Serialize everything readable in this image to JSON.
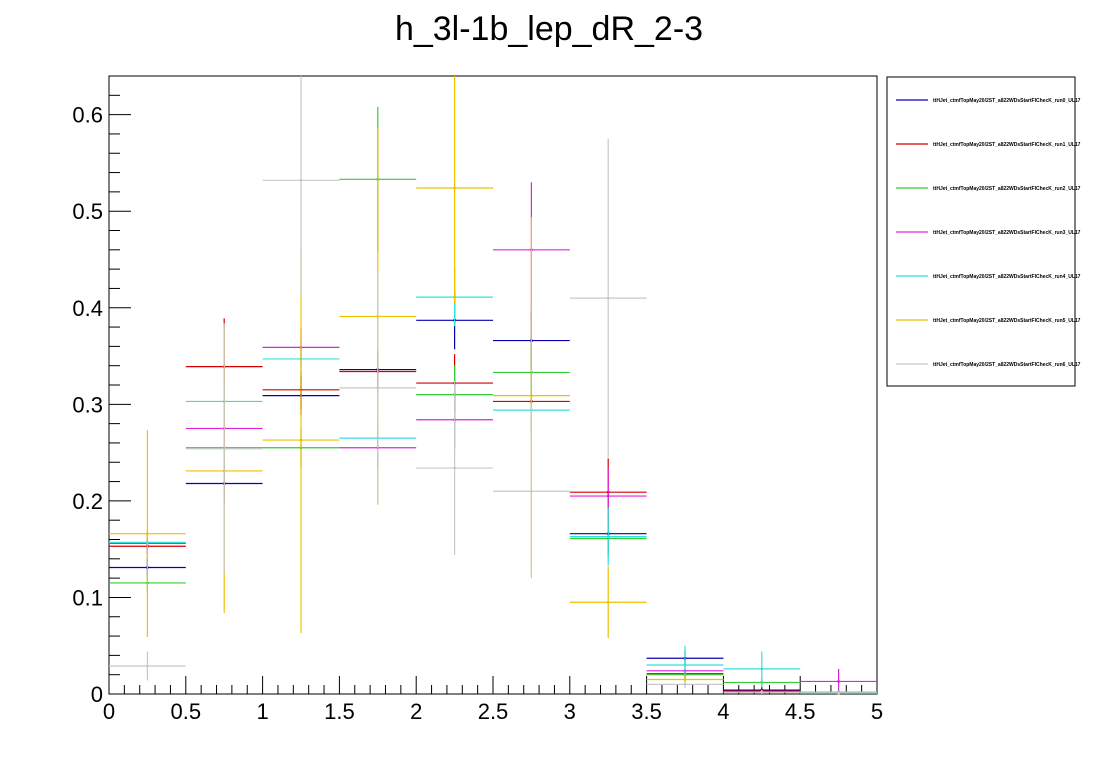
{
  "chart_data": {
    "type": "scatter",
    "title": "h_3l-1b_lep_dR_2-3",
    "xlabel": "",
    "ylabel": "",
    "xlim": [
      0,
      5
    ],
    "ylim": [
      0,
      0.64
    ],
    "bin_width": 0.5,
    "x_ticks": [
      "0",
      "0.5",
      "1",
      "1.5",
      "2",
      "2.5",
      "3",
      "3.5",
      "4",
      "4.5",
      "5"
    ],
    "y_ticks": [
      "0",
      "0.1",
      "0.2",
      "0.3",
      "0.4",
      "0.5",
      "0.6"
    ],
    "x_tick_values": [
      0,
      0.5,
      1,
      1.5,
      2,
      2.5,
      3,
      3.5,
      4,
      4.5,
      5
    ],
    "y_tick_values": [
      0,
      0.1,
      0.2,
      0.3,
      0.4,
      0.5,
      0.6
    ],
    "legend_position": "top-right",
    "x": [
      0.25,
      0.75,
      1.25,
      1.75,
      2.25,
      2.75,
      3.25,
      3.75,
      4.25,
      4.75
    ],
    "series": [
      {
        "name": "ttHJet_ctmfTopMay20/2ST_a822WDsStartFIChecK_run0_UL17",
        "color": "#0a00b0",
        "values": [
          0.131,
          0.218,
          0.309,
          0.336,
          0.387,
          0.366,
          0.166,
          0.037,
          0.004,
          0.001
        ],
        "errors": [
          0.01,
          0.02,
          0.02,
          0.02,
          0.03,
          0.03,
          0.02,
          0.008,
          0.003,
          0.001
        ]
      },
      {
        "name": "ttHJet_ctmfTopMay20/2ST_a822WDsStartFIChecK_run1_UL17",
        "color": "#d40000",
        "values": [
          0.153,
          0.339,
          0.315,
          0.334,
          0.322,
          0.303,
          0.209,
          0.021,
          0.003,
          0.001
        ],
        "errors": [
          0.01,
          0.05,
          0.02,
          0.02,
          0.03,
          0.03,
          0.035,
          0.005,
          0.002,
          0.001
        ]
      },
      {
        "name": "ttHJet_ctmfTopMay20/2ST_a822WDsStartFIChecK_run2_UL17",
        "color": "#33cc33",
        "values": [
          0.115,
          0.255,
          0.255,
          0.533,
          0.31,
          0.333,
          0.161,
          0.02,
          0.012,
          0.002
        ],
        "errors": [
          0.01,
          0.02,
          0.02,
          0.075,
          0.03,
          0.03,
          0.02,
          0.005,
          0.005,
          0.001
        ]
      },
      {
        "name": "ttHJet_ctmfTopMay20/2ST_a822WDsStartFIChecK_run3_UL17",
        "color": "#e020e0",
        "values": [
          0.156,
          0.275,
          0.359,
          0.255,
          0.284,
          0.46,
          0.205,
          0.024,
          0.002,
          0.013
        ],
        "errors": [
          0.01,
          0.02,
          0.02,
          0.02,
          0.03,
          0.07,
          0.03,
          0.005,
          0.002,
          0.013
        ]
      },
      {
        "name": "ttHJet_ctmfTopMay20/2ST_a822WDsStartFIChecK_run4_UL17",
        "color": "#33e0e0",
        "values": [
          0.157,
          0.303,
          0.347,
          0.265,
          0.411,
          0.294,
          0.163,
          0.03,
          0.026,
          0.002
        ],
        "errors": [
          0.01,
          0.02,
          0.02,
          0.02,
          0.03,
          0.03,
          0.03,
          0.02,
          0.018,
          0.001
        ]
      },
      {
        "name": "ttHJet_ctmfTopMay20/2ST_a822WDsStartFIChecK_run5_UL17",
        "color": "#f0c000",
        "values": [
          0.166,
          0.231,
          0.263,
          0.391,
          0.524,
          0.309,
          0.095,
          0.015,
          0.002,
          0.001
        ],
        "errors": [
          0.107,
          0.147,
          0.2,
          0.195,
          0.12,
          0.185,
          0.037,
          0.005,
          0.002,
          0.001
        ]
      },
      {
        "name": "ttHJet_ctmfTopMay20/2ST_a822WDsStartFIChecK_run6_UL17",
        "color": "#c8c8c8",
        "values": [
          0.029,
          0.254,
          0.532,
          0.317,
          0.234,
          0.21,
          0.41,
          0.01,
          0.002,
          0.001
        ],
        "errors": [
          0.015,
          0.13,
          0.12,
          0.12,
          0.09,
          0.09,
          0.165,
          0.004,
          0.002,
          0.001
        ]
      }
    ]
  }
}
